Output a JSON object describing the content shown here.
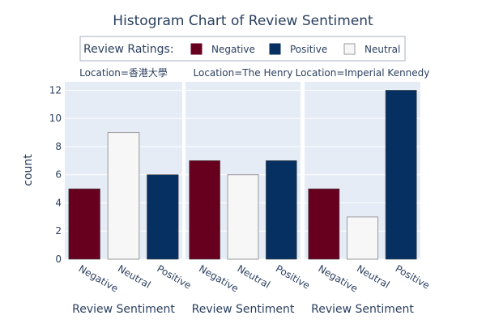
{
  "chart_data": {
    "type": "bar",
    "title": "Histogram Chart of Review Sentiment",
    "ylabel": "count",
    "xlabel": "Review Sentiment",
    "ylim": [
      0,
      12.6
    ],
    "yticks": [
      0,
      2,
      4,
      6,
      8,
      10,
      12
    ],
    "grid": true,
    "legend": {
      "title": "Review Ratings:",
      "placement": "top-center",
      "entries": [
        {
          "name": "Negative",
          "color": "#67001f"
        },
        {
          "name": "Positive",
          "color": "#053061"
        },
        {
          "name": "Neutral",
          "color": "#f7f7f7"
        }
      ]
    },
    "colors": {
      "Negative": "#67001f",
      "Neutral": "#f7f7f7",
      "Positive": "#053061",
      "plot_bg": "#e5ecf6",
      "text": "#2a3f5f"
    },
    "facets": [
      {
        "label": "Location=香港大學",
        "categories": [
          "Negative",
          "Neutral",
          "Positive"
        ],
        "values": [
          5,
          9,
          6
        ]
      },
      {
        "label": "Location=The Henry",
        "categories": [
          "Negative",
          "Neutral",
          "Positive"
        ],
        "values": [
          7,
          6,
          7
        ]
      },
      {
        "label": "Location=Imperial Kennedy",
        "categories": [
          "Negative",
          "Neutral",
          "Positive"
        ],
        "values": [
          5,
          3,
          12
        ]
      }
    ]
  }
}
